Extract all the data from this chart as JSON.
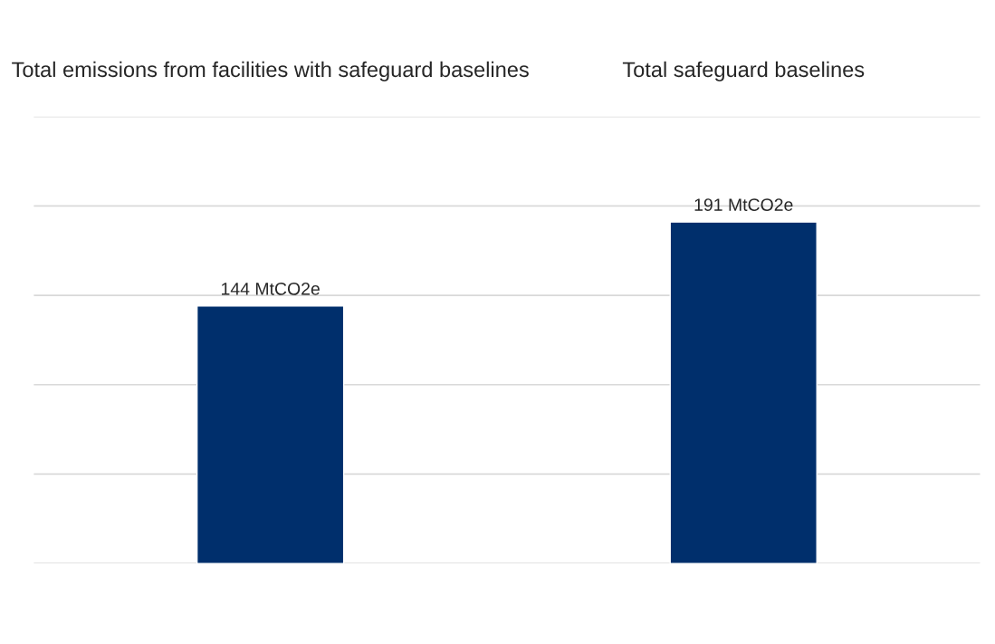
{
  "chart_data": {
    "type": "bar",
    "categories": [
      "Total emissions from facilities with safeguard baselines",
      "Total safeguard baselines"
    ],
    "values": [
      144,
      191
    ],
    "value_labels": [
      "144 MtCO2e",
      "191 MtCO2e"
    ],
    "color": "#002f6c",
    "ylim": [
      0,
      250
    ],
    "yticks": [
      {
        "value": 0,
        "label": null
      },
      {
        "value": 50,
        "label": null
      },
      {
        "value": 100,
        "label": null
      },
      {
        "value": 150,
        "label": null
      },
      {
        "value": 200,
        "label": null
      },
      {
        "value": 250,
        "label": null
      }
    ],
    "grid": "y",
    "tick_labels": "x"
  }
}
